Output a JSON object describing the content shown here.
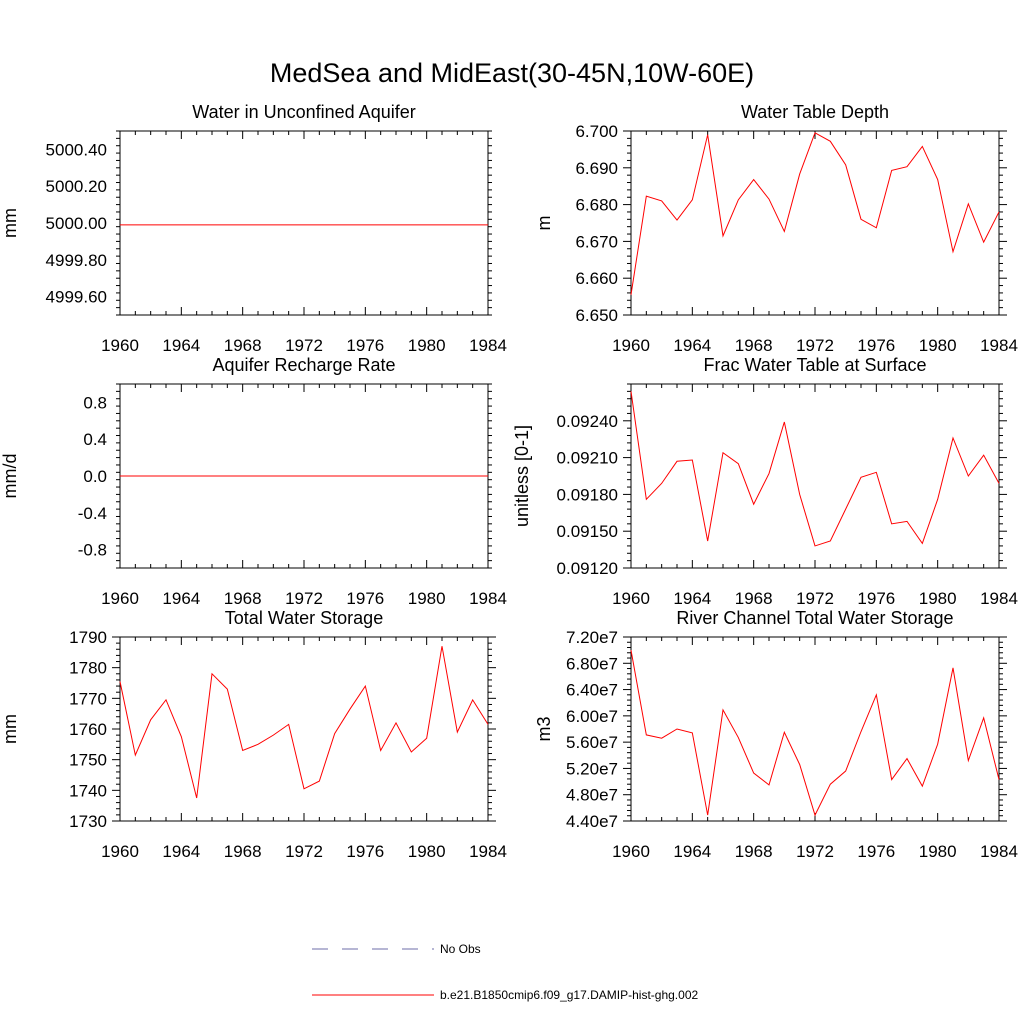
{
  "title": "MedSea and MidEast(30-45N,10W-60E)",
  "series_color": "#ff0000",
  "obs_color": "#6e6ea8",
  "legend": {
    "items": [
      {
        "label": "No Obs",
        "style": "dashed",
        "color": "#6e6ea8"
      },
      {
        "label": "b.e21.B1850cmip6.f09_g17.DAMIP-hist-ghg.002",
        "style": "solid",
        "color": "#ff0000"
      }
    ]
  },
  "chart_data": [
    {
      "type": "line",
      "title": "Water in Unconfined Aquifer",
      "ylabel": "mm",
      "xlim": [
        1960,
        1984
      ],
      "ylim": [
        4999.5,
        5000.5
      ],
      "xticks": [
        1960,
        1964,
        1968,
        1972,
        1976,
        1980,
        1984
      ],
      "xtick_labels": [
        "1960",
        "1964",
        "1968",
        "1972",
        "1976",
        "1980",
        "1984"
      ],
      "yticks": [
        4999.6,
        4999.8,
        5000.0,
        5000.2,
        5000.4
      ],
      "ytick_labels": [
        "4999.60",
        "4999.80",
        "5000.00",
        "5000.20",
        "5000.40"
      ],
      "x": [
        1960,
        1984
      ],
      "y": [
        4999.99,
        4999.99
      ]
    },
    {
      "type": "line",
      "title": "Water Table Depth",
      "ylabel": "m",
      "xlim": [
        1960,
        1984
      ],
      "ylim": [
        6.65,
        6.7
      ],
      "xticks": [
        1960,
        1964,
        1968,
        1972,
        1976,
        1980,
        1984
      ],
      "xtick_labels": [
        "1960",
        "1964",
        "1968",
        "1972",
        "1976",
        "1980",
        "1984"
      ],
      "yticks": [
        6.65,
        6.66,
        6.67,
        6.68,
        6.69,
        6.7
      ],
      "ytick_labels": [
        "6.650",
        "6.660",
        "6.670",
        "6.680",
        "6.690",
        "6.700"
      ],
      "x": [
        1960,
        1961,
        1962,
        1963,
        1964,
        1965,
        1966,
        1967,
        1968,
        1969,
        1970,
        1971,
        1972,
        1973,
        1974,
        1975,
        1976,
        1977,
        1978,
        1979,
        1980,
        1981,
        1982,
        1983,
        1984
      ],
      "y": [
        6.6555,
        6.6823,
        6.681,
        6.6758,
        6.6813,
        6.699,
        6.6715,
        6.6813,
        6.6868,
        6.6815,
        6.6727,
        6.6883,
        6.6995,
        6.6972,
        6.6908,
        6.676,
        6.6737,
        6.6893,
        6.6903,
        6.6958,
        6.6868,
        6.6672,
        6.6802,
        6.6698,
        6.678
      ]
    },
    {
      "type": "line",
      "title": "Aquifer Recharge Rate",
      "ylabel": "mm/d",
      "xlim": [
        1960,
        1984
      ],
      "ylim": [
        -1.0,
        1.0
      ],
      "xticks": [
        1960,
        1964,
        1968,
        1972,
        1976,
        1980,
        1984
      ],
      "xtick_labels": [
        "1960",
        "1964",
        "1968",
        "1972",
        "1976",
        "1980",
        "1984"
      ],
      "yticks": [
        -0.8,
        -0.4,
        0.0,
        0.4,
        0.8
      ],
      "ytick_labels": [
        "-0.8",
        "-0.4",
        "0.0",
        "0.4",
        "0.8"
      ],
      "x": [
        1960,
        1984
      ],
      "y": [
        0.0,
        0.0
      ]
    },
    {
      "type": "line",
      "title": "Frac Water Table at Surface",
      "ylabel": "unitless [0-1]",
      "xlim": [
        1960,
        1984
      ],
      "ylim": [
        0.0912,
        0.0927
      ],
      "xticks": [
        1960,
        1964,
        1968,
        1972,
        1976,
        1980,
        1984
      ],
      "xtick_labels": [
        "1960",
        "1964",
        "1968",
        "1972",
        "1976",
        "1980",
        "1984"
      ],
      "yticks": [
        0.0912,
        0.0915,
        0.0918,
        0.0921,
        0.0924
      ],
      "ytick_labels": [
        "0.09120",
        "0.09150",
        "0.09180",
        "0.09210",
        "0.09240"
      ],
      "x": [
        1960,
        1961,
        1962,
        1963,
        1964,
        1965,
        1966,
        1967,
        1968,
        1969,
        1970,
        1971,
        1972,
        1973,
        1974,
        1975,
        1976,
        1977,
        1978,
        1979,
        1980,
        1981,
        1982,
        1983,
        1984
      ],
      "y": [
        0.09264,
        0.09176,
        0.09189,
        0.09207,
        0.09208,
        0.09142,
        0.09214,
        0.09205,
        0.09172,
        0.09197,
        0.09239,
        0.0918,
        0.09138,
        0.09142,
        0.09168,
        0.09194,
        0.09198,
        0.09156,
        0.09158,
        0.0914,
        0.09176,
        0.09226,
        0.09195,
        0.09212,
        0.09189
      ]
    },
    {
      "type": "line",
      "title": "Total Water Storage",
      "ylabel": "mm",
      "xlim": [
        1960,
        1984
      ],
      "ylim": [
        1730,
        1790
      ],
      "xticks": [
        1960,
        1964,
        1968,
        1972,
        1976,
        1980,
        1984
      ],
      "xtick_labels": [
        "1960",
        "1964",
        "1968",
        "1972",
        "1976",
        "1980",
        "1984"
      ],
      "yticks": [
        1730,
        1740,
        1750,
        1760,
        1770,
        1780,
        1790
      ],
      "ytick_labels": [
        "1730",
        "1740",
        "1750",
        "1760",
        "1770",
        "1780",
        "1790"
      ],
      "x": [
        1960,
        1961,
        1962,
        1963,
        1964,
        1965,
        1966,
        1967,
        1968,
        1969,
        1970,
        1971,
        1972,
        1973,
        1974,
        1975,
        1976,
        1977,
        1978,
        1979,
        1980,
        1981,
        1982,
        1983,
        1984
      ],
      "y": [
        1775.5,
        1751.5,
        1763.0,
        1769.5,
        1757.5,
        1737.5,
        1778.0,
        1773.0,
        1753.0,
        1755.0,
        1758.0,
        1761.5,
        1740.5,
        1743.0,
        1758.5,
        1766.5,
        1774.0,
        1753.0,
        1762.0,
        1752.5,
        1757.0,
        1787.0,
        1759.0,
        1769.5,
        1761.5
      ]
    },
    {
      "type": "line",
      "title": "River Channel Total Water Storage",
      "ylabel": "m3",
      "xlim": [
        1960,
        1984
      ],
      "ylim": [
        44000000,
        72000000
      ],
      "xticks": [
        1960,
        1964,
        1968,
        1972,
        1976,
        1980,
        1984
      ],
      "xtick_labels": [
        "1960",
        "1964",
        "1968",
        "1972",
        "1976",
        "1980",
        "1984"
      ],
      "yticks": [
        44000000,
        48000000,
        52000000,
        56000000,
        60000000,
        64000000,
        68000000,
        72000000
      ],
      "ytick_labels": [
        "4.40e7",
        "4.80e7",
        "5.20e7",
        "5.60e7",
        "6.00e7",
        "6.40e7",
        "6.80e7",
        "7.20e7"
      ],
      "x": [
        1960,
        1961,
        1962,
        1963,
        1964,
        1965,
        1966,
        1967,
        1968,
        1969,
        1970,
        1971,
        1972,
        1973,
        1974,
        1975,
        1976,
        1977,
        1978,
        1979,
        1980,
        1981,
        1982,
        1983,
        1984
      ],
      "y": [
        70000000,
        57100000,
        56600000,
        58000000,
        57400000,
        44900000,
        60900000,
        56700000,
        51300000,
        49500000,
        57500000,
        52600000,
        44900000,
        49600000,
        51600000,
        57600000,
        63200000,
        50300000,
        53500000,
        49300000,
        55700000,
        67300000,
        53200000,
        59700000,
        50300000
      ]
    }
  ]
}
